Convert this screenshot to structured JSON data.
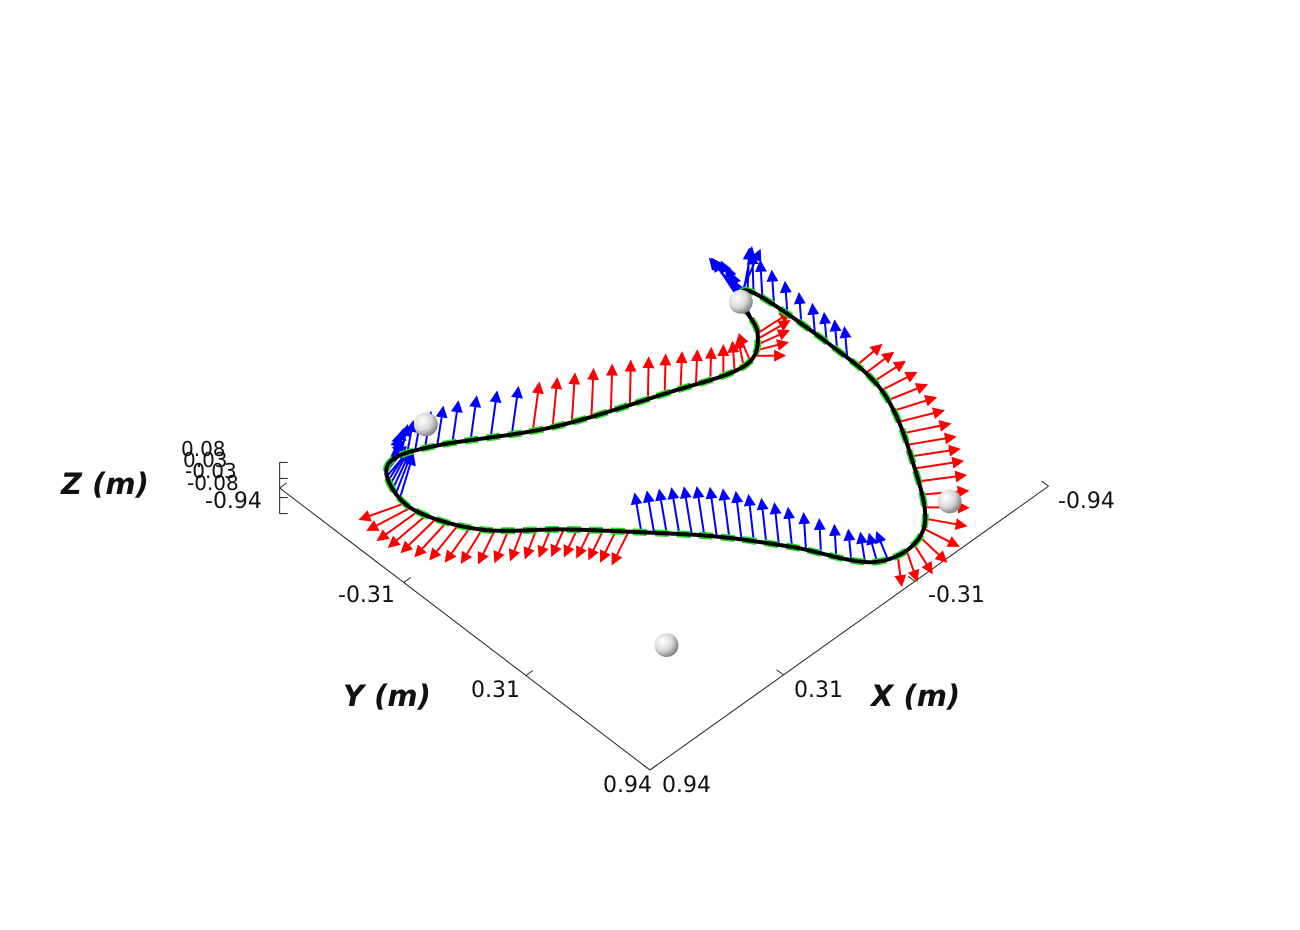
{
  "chart_data": {
    "type": "line",
    "projection": "3d",
    "axes": {
      "x": {
        "label": "X (m)",
        "ticks": [
          "-0.94",
          "-0.31",
          "0.31",
          "0.94"
        ],
        "range": [
          -0.94,
          0.94
        ]
      },
      "y": {
        "label": "Y (m)",
        "ticks": [
          "-0.94",
          "-0.31",
          "0.31",
          "0.94"
        ],
        "range": [
          -0.94,
          0.94
        ]
      },
      "z": {
        "label": "Z (m)",
        "ticks": [
          "0.08",
          "0.03",
          "-0.03",
          "-0.08"
        ],
        "range": [
          -0.08,
          0.08
        ]
      }
    },
    "grid": false,
    "colors": {
      "trajectory": "#000000",
      "reference": "#22e022",
      "vector_a": "#ff0000",
      "vector_b": "#0000ff",
      "waypoint": "#d8d8d8"
    },
    "trajectory": {
      "x": [
        -0.84,
        -0.7,
        -0.5,
        -0.28,
        -0.12,
        0.03,
        0.2,
        0.38,
        0.58,
        0.68,
        0.66,
        0.58,
        0.42,
        0.08,
        -0.3,
        -0.58,
        -0.72,
        -0.78,
        -0.84,
        -0.86,
        -0.84
      ],
      "y": [
        0.2,
        0.5,
        0.78,
        0.78,
        0.52,
        0.3,
        0.1,
        -0.1,
        -0.3,
        -0.52,
        -0.68,
        -0.76,
        -0.7,
        -0.48,
        -0.32,
        -0.22,
        -0.3,
        -0.45,
        -0.45,
        -0.1,
        0.2
      ],
      "z": [
        0.0,
        0.0,
        0.0,
        0.0,
        0.0,
        0.0,
        0.0,
        0.0,
        0.0,
        0.0,
        0.0,
        0.0,
        0.0,
        0.0,
        0.0,
        0.0,
        0.0,
        0.0,
        0.0,
        0.0,
        0.0
      ]
    },
    "waypoints": {
      "x": [
        -0.65,
        0.5,
        0.38,
        -0.78
      ],
      "y": [
        0.75,
        0.55,
        -0.8,
        -0.45
      ],
      "z": [
        0.0,
        0.0,
        0.0,
        0.0
      ]
    }
  }
}
